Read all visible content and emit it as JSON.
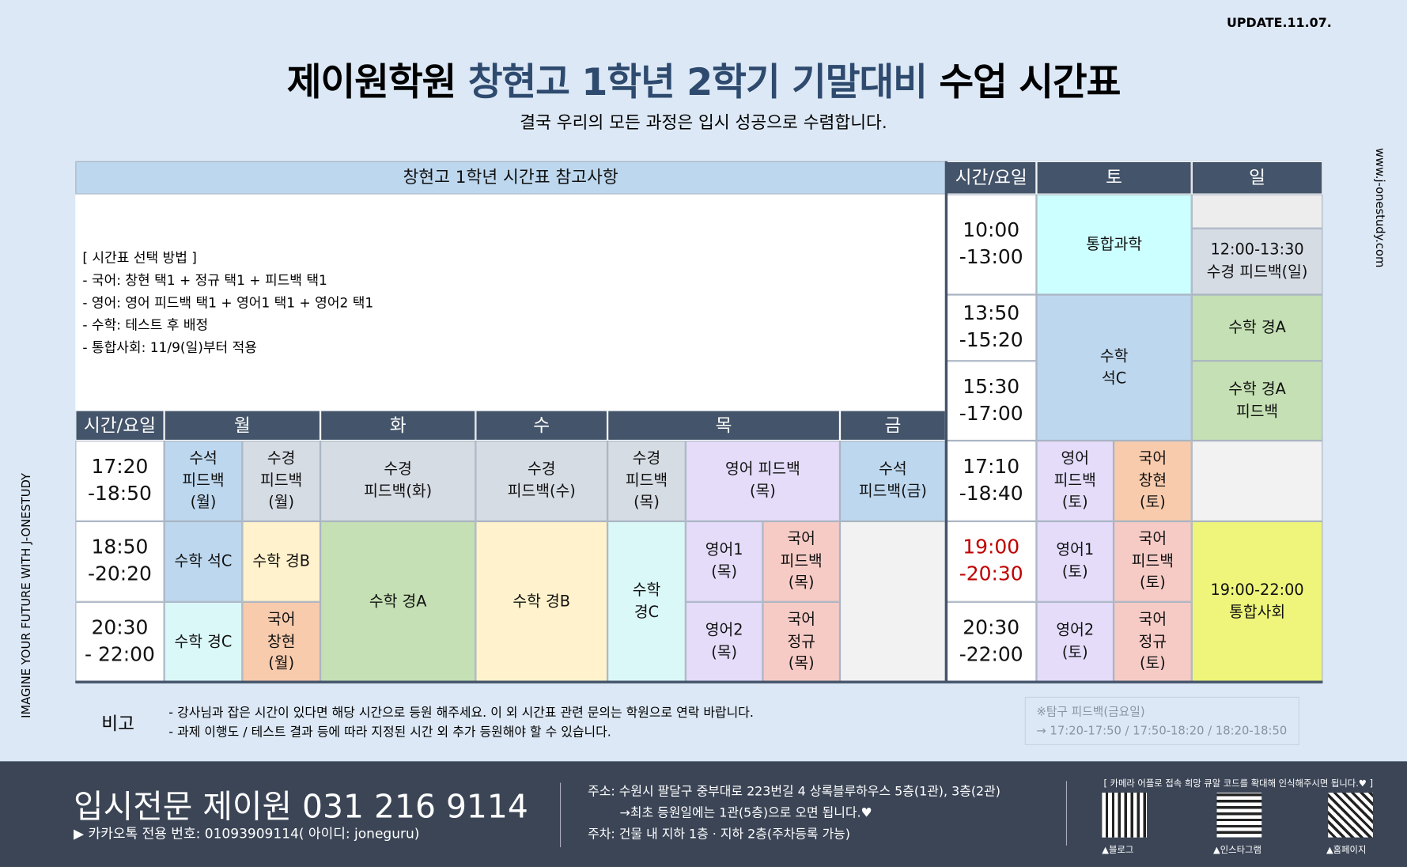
{
  "header": {
    "update": "UPDATE.11.07.",
    "title_academy": "제이원학원",
    "title_course": "창현고 1학년 2학기 기말대비",
    "title_end": "수업 시간표",
    "subtitle": "결국 우리의 모든 과정은 입시 성공으로 수렴합니다.",
    "side_left": "IMAGINE YOUR FUTURE WITH J-ONESTUDY",
    "side_right": "www.j-onestudy.com"
  },
  "notes": {
    "heading": "창현고 1학년 시간표 참고사항",
    "lines": [
      "[ 시간표 선택 방법 ]",
      "- 국어: 창현 택1 + 정규 택1 + 피드백 택1",
      "- 영어: 영어 피드백 택1 + 영어1 택1 + 영어2 택1",
      "- 수학: 테스트 후  배정",
      "- 통합사회: 11/9(일)부터 적용"
    ]
  },
  "weekday_table": {
    "headers": [
      "시간/요일",
      "월",
      "화",
      "수",
      "목",
      "금"
    ],
    "times": [
      "17:20\n-18:50",
      "18:50\n-20:20",
      "20:30\n- 22:00"
    ],
    "cells": [
      "수석\n피드백\n(월)",
      "수경\n피드백\n(월)",
      "수경\n피드백(화)",
      "수경\n피드백(수)",
      "수경\n피드백\n(목)",
      "영어 피드백\n(목)",
      "수석\n피드백(금)",
      "수학 석C",
      "수학 경B",
      "수학 경A",
      "수학 경B",
      "수학\n경C",
      "영어1\n(목)",
      "국어\n피드백\n(목)",
      "수학 경C",
      "국어\n창현\n(월)",
      "영어2\n(목)",
      "국어\n정규\n(목)"
    ]
  },
  "weekend_table": {
    "headers": [
      "시간/요일",
      "토",
      "일"
    ],
    "times": [
      "10:00\n-13:00",
      "13:50\n-15:20",
      "15:30\n-17:00",
      "17:10\n-18:40",
      "19:00\n-20:30",
      "20:30\n-22:00"
    ],
    "cells": [
      "통합과학",
      "12:00-13:30\n수경 피드백(일)",
      "수학\n석C",
      "수학 경A",
      "수학 경A\n피드백",
      "영어\n피드백\n(토)",
      "국어\n창현\n(토)",
      "영어1\n(토)",
      "국어\n피드백\n(토)",
      "19:00-22:00\n통합사회",
      "영어2\n(토)",
      "국어\n정규\n(토)"
    ]
  },
  "remarks": {
    "label": "비고",
    "lines": [
      "- 강사님과 잡은 시간이 있다면 해당 시간으로 등원 해주세요. 이 외 시간표 관련 문의는 학원으로 연락 바랍니다.",
      "- 과제 이행도 / 테스트 결과 등에 따라 지정된 시간 외 추가 등원해야 할 수 있습니다."
    ],
    "box": [
      "※탐구 피드백(금요일)",
      "→ 17:20-17:50 / 17:50-18:20 / 18:20-18:50"
    ]
  },
  "footer": {
    "phone": "입시전문 제이원 031 216 9114",
    "kakao": "▶ 카카오톡 전용 번호: 01093909114( 아이디: joneguru)",
    "address": [
      "주소: 수원시 팔달구 중부대로 223번길 4 상록블루하우스 5층(1관), 3층(2관)",
      "        →최초 등원일에는 1관(5층)으로 오면 됩니다.♥",
      "주차: 건물 내 지하 1층 · 지하 2층(주차등록 가능)"
    ],
    "qr_note": "[ 카메라 어플로 접속 희망 큐알 코드를 확대해 인식해주시면 됩니다.♥ ]",
    "qr_labels": [
      "▲블로그",
      "▲인스타그램",
      "▲홈페이지"
    ]
  }
}
